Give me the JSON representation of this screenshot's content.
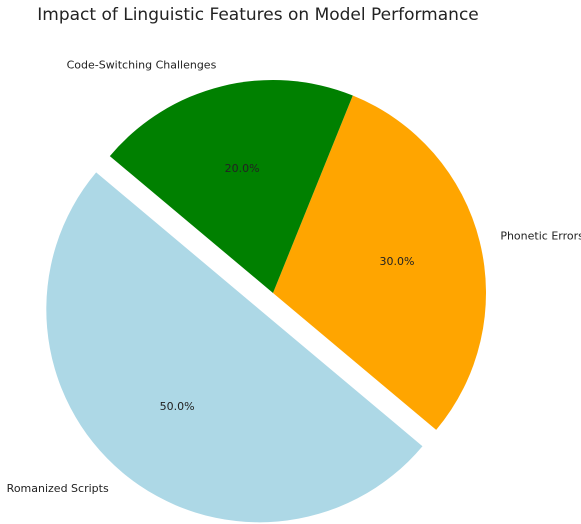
{
  "chart_data": {
    "type": "pie",
    "title": "Impact of Linguistic Features on Model Performance",
    "categories": [
      "Romanized Scripts",
      "Phonetic Errors",
      "Code-Switching Challenges"
    ],
    "values": [
      50,
      30,
      20
    ],
    "value_labels": [
      "50.0%",
      "30.0%",
      "20.0%"
    ],
    "colors": [
      "#add8e6",
      "#ffa500",
      "#008000"
    ],
    "start_angle": 140,
    "explode": [
      0.1,
      0,
      0
    ]
  }
}
